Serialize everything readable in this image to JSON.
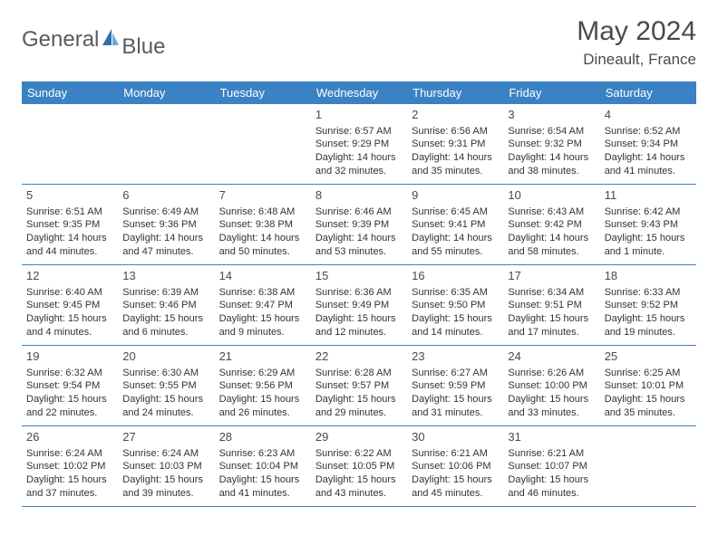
{
  "logo": {
    "word1": "General",
    "word2": "Blue"
  },
  "header": {
    "month": "May 2024",
    "location": "Dineault, France"
  },
  "colors": {
    "header_bg": "#3a82c4",
    "header_text": "#ffffff",
    "border": "#3a82c4",
    "logo_gray": "#5a5a5a",
    "logo_blue": "#2f6fb0",
    "logo_light": "#6ea8d8",
    "text": "#333333",
    "title": "#4a4a4a"
  },
  "weekdays": [
    "Sunday",
    "Monday",
    "Tuesday",
    "Wednesday",
    "Thursday",
    "Friday",
    "Saturday"
  ],
  "weeks": [
    [
      null,
      null,
      null,
      {
        "n": "1",
        "sr": "6:57 AM",
        "ss": "9:29 PM",
        "dl": "14 hours and 32 minutes."
      },
      {
        "n": "2",
        "sr": "6:56 AM",
        "ss": "9:31 PM",
        "dl": "14 hours and 35 minutes."
      },
      {
        "n": "3",
        "sr": "6:54 AM",
        "ss": "9:32 PM",
        "dl": "14 hours and 38 minutes."
      },
      {
        "n": "4",
        "sr": "6:52 AM",
        "ss": "9:34 PM",
        "dl": "14 hours and 41 minutes."
      }
    ],
    [
      {
        "n": "5",
        "sr": "6:51 AM",
        "ss": "9:35 PM",
        "dl": "14 hours and 44 minutes."
      },
      {
        "n": "6",
        "sr": "6:49 AM",
        "ss": "9:36 PM",
        "dl": "14 hours and 47 minutes."
      },
      {
        "n": "7",
        "sr": "6:48 AM",
        "ss": "9:38 PM",
        "dl": "14 hours and 50 minutes."
      },
      {
        "n": "8",
        "sr": "6:46 AM",
        "ss": "9:39 PM",
        "dl": "14 hours and 53 minutes."
      },
      {
        "n": "9",
        "sr": "6:45 AM",
        "ss": "9:41 PM",
        "dl": "14 hours and 55 minutes."
      },
      {
        "n": "10",
        "sr": "6:43 AM",
        "ss": "9:42 PM",
        "dl": "14 hours and 58 minutes."
      },
      {
        "n": "11",
        "sr": "6:42 AM",
        "ss": "9:43 PM",
        "dl": "15 hours and 1 minute."
      }
    ],
    [
      {
        "n": "12",
        "sr": "6:40 AM",
        "ss": "9:45 PM",
        "dl": "15 hours and 4 minutes."
      },
      {
        "n": "13",
        "sr": "6:39 AM",
        "ss": "9:46 PM",
        "dl": "15 hours and 6 minutes."
      },
      {
        "n": "14",
        "sr": "6:38 AM",
        "ss": "9:47 PM",
        "dl": "15 hours and 9 minutes."
      },
      {
        "n": "15",
        "sr": "6:36 AM",
        "ss": "9:49 PM",
        "dl": "15 hours and 12 minutes."
      },
      {
        "n": "16",
        "sr": "6:35 AM",
        "ss": "9:50 PM",
        "dl": "15 hours and 14 minutes."
      },
      {
        "n": "17",
        "sr": "6:34 AM",
        "ss": "9:51 PM",
        "dl": "15 hours and 17 minutes."
      },
      {
        "n": "18",
        "sr": "6:33 AM",
        "ss": "9:52 PM",
        "dl": "15 hours and 19 minutes."
      }
    ],
    [
      {
        "n": "19",
        "sr": "6:32 AM",
        "ss": "9:54 PM",
        "dl": "15 hours and 22 minutes."
      },
      {
        "n": "20",
        "sr": "6:30 AM",
        "ss": "9:55 PM",
        "dl": "15 hours and 24 minutes."
      },
      {
        "n": "21",
        "sr": "6:29 AM",
        "ss": "9:56 PM",
        "dl": "15 hours and 26 minutes."
      },
      {
        "n": "22",
        "sr": "6:28 AM",
        "ss": "9:57 PM",
        "dl": "15 hours and 29 minutes."
      },
      {
        "n": "23",
        "sr": "6:27 AM",
        "ss": "9:59 PM",
        "dl": "15 hours and 31 minutes."
      },
      {
        "n": "24",
        "sr": "6:26 AM",
        "ss": "10:00 PM",
        "dl": "15 hours and 33 minutes."
      },
      {
        "n": "25",
        "sr": "6:25 AM",
        "ss": "10:01 PM",
        "dl": "15 hours and 35 minutes."
      }
    ],
    [
      {
        "n": "26",
        "sr": "6:24 AM",
        "ss": "10:02 PM",
        "dl": "15 hours and 37 minutes."
      },
      {
        "n": "27",
        "sr": "6:24 AM",
        "ss": "10:03 PM",
        "dl": "15 hours and 39 minutes."
      },
      {
        "n": "28",
        "sr": "6:23 AM",
        "ss": "10:04 PM",
        "dl": "15 hours and 41 minutes."
      },
      {
        "n": "29",
        "sr": "6:22 AM",
        "ss": "10:05 PM",
        "dl": "15 hours and 43 minutes."
      },
      {
        "n": "30",
        "sr": "6:21 AM",
        "ss": "10:06 PM",
        "dl": "15 hours and 45 minutes."
      },
      {
        "n": "31",
        "sr": "6:21 AM",
        "ss": "10:07 PM",
        "dl": "15 hours and 46 minutes."
      },
      null
    ]
  ],
  "labels": {
    "sunrise": "Sunrise:",
    "sunset": "Sunset:",
    "daylight": "Daylight:"
  }
}
